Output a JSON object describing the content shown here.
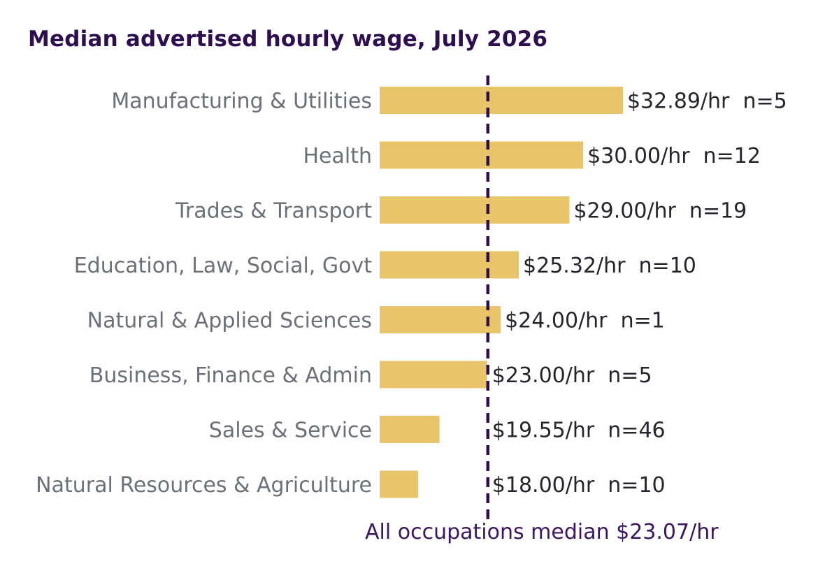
{
  "chart_data": {
    "type": "bar",
    "orientation": "horizontal",
    "title": "Median advertised hourly wage, July 2026",
    "categories": [
      "Manufacturing & Utilities",
      "Health",
      "Trades & Transport",
      "Education, Law, Social, Govt",
      "Natural & Applied Sciences",
      "Business, Finance & Admin",
      "Sales & Service",
      "Natural Resources & Agriculture"
    ],
    "values": [
      32.89,
      30.0,
      29.0,
      25.32,
      24.0,
      23.0,
      19.55,
      18.0
    ],
    "value_labels": [
      "$32.89/hr  n=5",
      "$30.00/hr  n=12",
      "$29.00/hr  n=19",
      "$25.32/hr  n=10",
      "$24.00/hr  n=1",
      "$23.00/hr  n=5",
      "$19.55/hr  n=46",
      "$18.00/hr  n=10"
    ],
    "reference_line": {
      "value": 23.07,
      "label": "All occupations median $23.07/hr",
      "style": "dashed"
    },
    "grid": false,
    "legend": "none",
    "colors": {
      "bar": "#e8c46a",
      "reference": "#2d0f4f",
      "title": "#2d0f4f",
      "category_text": "#6b7079",
      "value_text": "#23262e",
      "reference_text": "#3a1760"
    }
  }
}
